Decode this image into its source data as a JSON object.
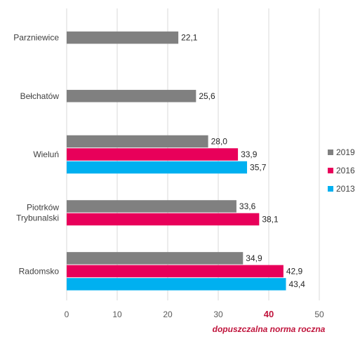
{
  "chart_data": {
    "type": "bar",
    "orientation": "horizontal",
    "categories": [
      "Parzniewice",
      "Bełchatów",
      "Wieluń",
      "Piotrków Trybunalski",
      "Radomsko"
    ],
    "series": [
      {
        "name": "2019",
        "color": "#808080",
        "values": [
          22.1,
          25.6,
          28.0,
          33.6,
          34.9
        ],
        "labels": [
          "22,1",
          "25,6",
          "28,0",
          "33,6",
          "34,9"
        ]
      },
      {
        "name": "2016",
        "color": "#e8005a",
        "values": [
          null,
          null,
          33.9,
          38.1,
          42.9
        ],
        "labels": [
          "",
          "",
          "33,9",
          "38,1",
          "42,9"
        ]
      },
      {
        "name": "2013",
        "color": "#00b0f0",
        "values": [
          null,
          null,
          35.7,
          null,
          43.4
        ],
        "labels": [
          "",
          "",
          "35,7",
          "",
          "43,4"
        ]
      }
    ],
    "xlim": [
      0,
      50
    ],
    "xticks": [
      "0",
      "10",
      "20",
      "30",
      "40",
      "50"
    ],
    "highlight_tick": {
      "value": 40,
      "label": "40",
      "color": "#c0143c"
    },
    "norm_label": "dopuszczalna norma roczna",
    "legend_position": "right",
    "grid": true
  }
}
